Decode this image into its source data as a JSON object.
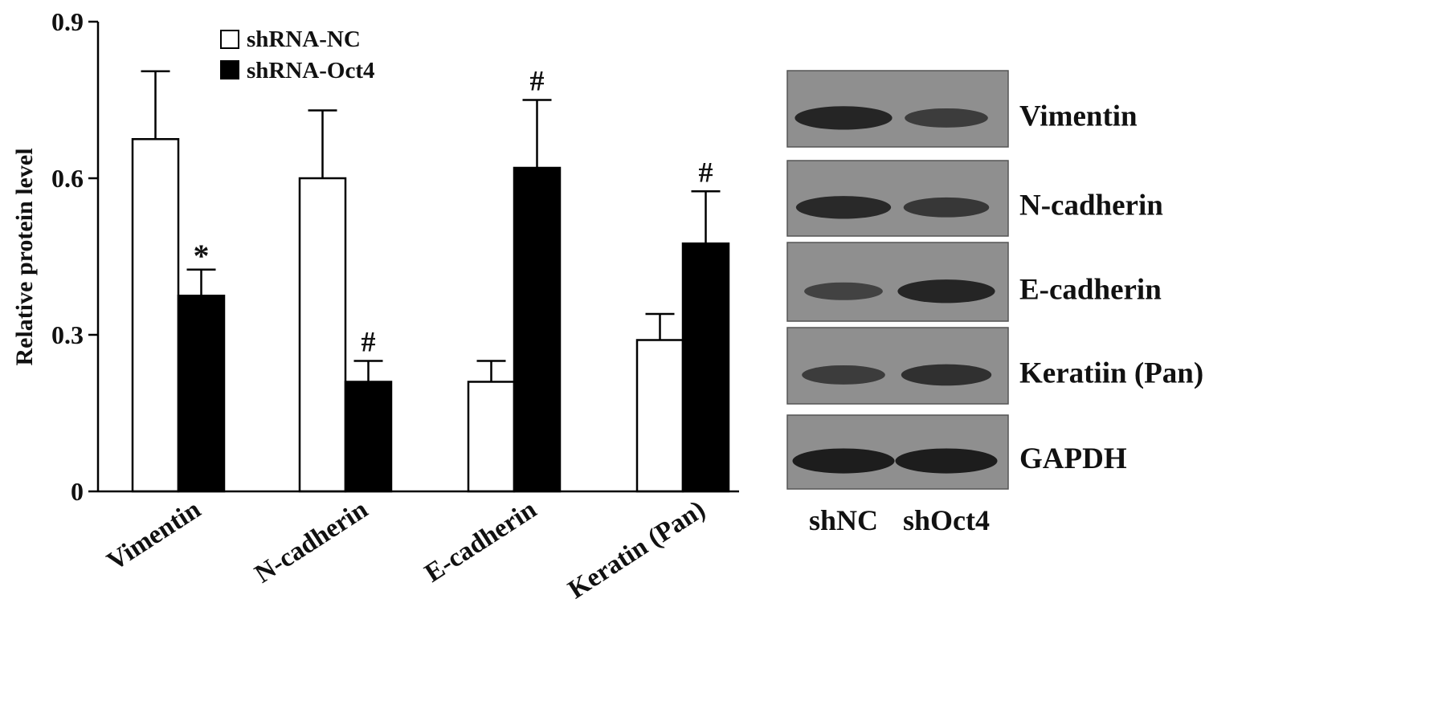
{
  "chart_data": {
    "type": "bar",
    "ylabel": "Relative protein level",
    "xlabel": "",
    "ylim": [
      0,
      0.9
    ],
    "yticks": [
      0,
      0.3,
      0.6,
      0.9
    ],
    "ytick_labels": [
      "0",
      "0.3",
      "0.6",
      "0.9"
    ],
    "categories": [
      "Vimentin",
      "N-cadherin",
      "E-cadherin",
      "Keratin (Pan)"
    ],
    "series": [
      {
        "name": "shRNA-NC",
        "fill": "#ffffff",
        "values": [
          0.675,
          0.6,
          0.21,
          0.29
        ],
        "errors": [
          0.13,
          0.13,
          0.04,
          0.05
        ],
        "marks": [
          "",
          "",
          "",
          ""
        ]
      },
      {
        "name": "shRNA-Oct4",
        "fill": "#000000",
        "values": [
          0.375,
          0.21,
          0.62,
          0.475
        ],
        "errors": [
          0.05,
          0.04,
          0.13,
          0.1
        ],
        "marks": [
          "*",
          "#",
          "#",
          "#"
        ]
      }
    ],
    "legend_position": "top-left",
    "grid": false
  },
  "blot": {
    "rows": [
      {
        "label": "Vimentin",
        "bands": [
          0.85,
          0.55
        ]
      },
      {
        "label": "N-cadherin",
        "bands": [
          0.8,
          0.6
        ]
      },
      {
        "label": "E-cadherin",
        "bands": [
          0.45,
          0.85
        ]
      },
      {
        "label": "Keratiin (Pan)",
        "bands": [
          0.55,
          0.7
        ]
      },
      {
        "label": "GAPDH",
        "bands": [
          0.95,
          0.95
        ]
      }
    ],
    "lanes": [
      "shNC",
      "shOct4"
    ]
  },
  "colors": {
    "axis": "#000000",
    "blot_background": "#8f8f8f",
    "band": "#141414"
  }
}
